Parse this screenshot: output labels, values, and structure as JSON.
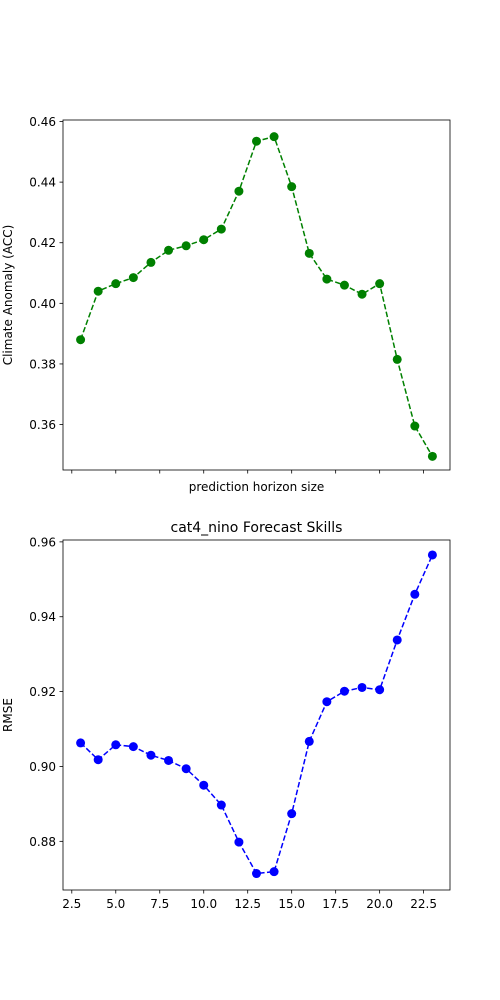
{
  "chart_data": [
    {
      "type": "line",
      "title": "",
      "xlabel": "prediction horizon size",
      "ylabel": "Climate Anomaly (ACC)",
      "xlim": [
        2.0,
        24.0
      ],
      "ylim": [
        0.345,
        0.4605
      ],
      "xticks": [
        2.5,
        5.0,
        7.5,
        10.0,
        12.5,
        15.0,
        17.5,
        20.0,
        22.5
      ],
      "xtick_labels_visible": false,
      "yticks": [
        0.36,
        0.38,
        0.4,
        0.42,
        0.44,
        0.46
      ],
      "ytick_labels": [
        "0.36",
        "0.38",
        "0.40",
        "0.42",
        "0.44",
        "0.46"
      ],
      "grid": false,
      "legend": "none",
      "series": [
        {
          "color": "#008000",
          "linestyle": "dashed",
          "marker": "circle",
          "x": [
            3,
            4,
            5,
            6,
            7,
            8,
            9,
            10,
            11,
            12,
            13,
            14,
            15,
            16,
            17,
            18,
            19,
            20,
            21,
            22,
            23
          ],
          "y": [
            0.388,
            0.404,
            0.4065,
            0.4085,
            0.4135,
            0.4175,
            0.419,
            0.421,
            0.4245,
            0.437,
            0.4535,
            0.455,
            0.4385,
            0.4165,
            0.408,
            0.406,
            0.403,
            0.4065,
            0.3815,
            0.3595,
            0.3495
          ]
        }
      ]
    },
    {
      "type": "line",
      "title": "cat4_nino Forecast Skills",
      "xlabel": "",
      "ylabel": "RMSE",
      "xlim": [
        2.0,
        24.0
      ],
      "ylim": [
        0.867,
        0.9605
      ],
      "xticks": [
        2.5,
        5.0,
        7.5,
        10.0,
        12.5,
        15.0,
        17.5,
        20.0,
        22.5
      ],
      "xtick_labels": [
        "2.5",
        "5.0",
        "7.5",
        "10.0",
        "12.5",
        "15.0",
        "17.5",
        "20.0",
        "22.5"
      ],
      "yticks": [
        0.88,
        0.9,
        0.92,
        0.94,
        0.96
      ],
      "ytick_labels": [
        "0.88",
        "0.90",
        "0.92",
        "0.94",
        "0.96"
      ],
      "grid": false,
      "legend": "none",
      "series": [
        {
          "color": "#0000ff",
          "linestyle": "dashed",
          "marker": "circle",
          "x": [
            3,
            4,
            5,
            6,
            7,
            8,
            9,
            10,
            11,
            12,
            13,
            14,
            15,
            16,
            17,
            18,
            19,
            20,
            21,
            22,
            23
          ],
          "y": [
            0.9063,
            0.9018,
            0.9058,
            0.9053,
            0.903,
            0.9016,
            0.8994,
            0.895,
            0.8897,
            0.8798,
            0.8714,
            0.8719,
            0.8874,
            0.9067,
            0.9173,
            0.9201,
            0.9211,
            0.9205,
            0.9338,
            0.946,
            0.9565
          ]
        }
      ]
    }
  ]
}
